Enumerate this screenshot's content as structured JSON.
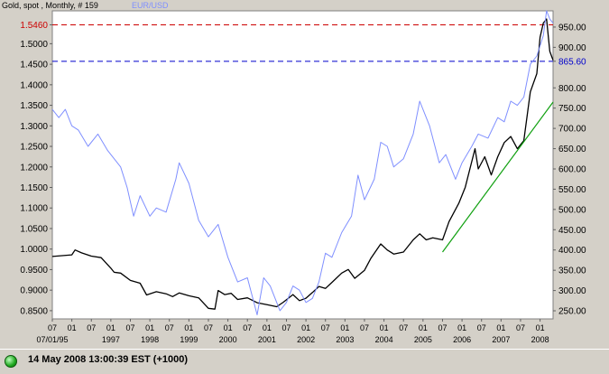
{
  "header": {
    "title": "Gold, spot , Monthly, # 159",
    "series_label": "EUR/USD"
  },
  "colors": {
    "gold": "#000000",
    "eurusd": "#7f8fff",
    "trend": "#10a010",
    "ref_red": "#cc0000",
    "ref_blue": "#0000cc",
    "label_red": "#cc0000",
    "label_blue": "#0000cc"
  },
  "footer": {
    "timestamp": "14 May 2008 13:00:39  EST (+1000)"
  },
  "chart_data": {
    "type": "line",
    "x_start": "1995-07",
    "x_end": "2008-05",
    "left_axis": {
      "ticks": [
        "0.8500",
        "0.9000",
        "0.9500",
        "1.0000",
        "1.0500",
        "1.1000",
        "1.1500",
        "1.2000",
        "1.2500",
        "1.3000",
        "1.3500",
        "1.4000",
        "1.4500",
        "1.5000",
        "1.5460"
      ],
      "ylim": [
        0.83,
        1.58
      ]
    },
    "right_axis": {
      "ticks": [
        "250.00",
        "300.00",
        "350.00",
        "400.00",
        "450.00",
        "500.00",
        "550.00",
        "600.00",
        "650.00",
        "700.00",
        "750.00",
        "800.00",
        "865.60",
        "900.00",
        "950.00"
      ],
      "ylim": [
        230,
        990
      ]
    },
    "x_tick_row1": [
      "07",
      "01",
      "07",
      "01",
      "07",
      "01",
      "07",
      "01",
      "07",
      "01",
      "07",
      "01",
      "07",
      "01",
      "07",
      "01",
      "07",
      "01",
      "07",
      "01",
      "07",
      "01",
      "07",
      "01",
      "07",
      "01"
    ],
    "x_tick_row2": [
      "07/01/95",
      "1997",
      "1998",
      "1999",
      "2000",
      "2001",
      "2002",
      "2003",
      "2004",
      "2005",
      "2006",
      "2007",
      "2008"
    ],
    "reference_lines": [
      {
        "label": "1.5460",
        "value": 1.546,
        "axis": "left"
      },
      {
        "label": "865.60",
        "value": 865.6,
        "axis": "right"
      }
    ],
    "series": [
      {
        "name": "Gold, spot",
        "axis": "right",
        "points": [
          [
            "1995-07",
            384
          ],
          [
            "1995-10",
            386
          ],
          [
            "1996-01",
            388
          ],
          [
            "1996-02",
            400
          ],
          [
            "1996-04",
            393
          ],
          [
            "1996-07",
            385
          ],
          [
            "1996-10",
            381
          ],
          [
            "1997-01",
            355
          ],
          [
            "1997-02",
            345
          ],
          [
            "1997-04",
            343
          ],
          [
            "1997-07",
            325
          ],
          [
            "1997-10",
            318
          ],
          [
            "1997-12",
            289
          ],
          [
            "1998-03",
            297
          ],
          [
            "1998-06",
            292
          ],
          [
            "1998-08",
            285
          ],
          [
            "1998-10",
            294
          ],
          [
            "1999-01",
            287
          ],
          [
            "1999-04",
            282
          ],
          [
            "1999-07",
            256
          ],
          [
            "1999-09",
            254
          ],
          [
            "1999-10",
            300
          ],
          [
            "1999-12",
            290
          ],
          [
            "2000-02",
            293
          ],
          [
            "2000-04",
            278
          ],
          [
            "2000-07",
            282
          ],
          [
            "2000-10",
            270
          ],
          [
            "2001-01",
            265
          ],
          [
            "2001-04",
            260
          ],
          [
            "2001-06",
            271
          ],
          [
            "2001-09",
            290
          ],
          [
            "2001-11",
            275
          ],
          [
            "2002-01",
            281
          ],
          [
            "2002-03",
            295
          ],
          [
            "2002-05",
            310
          ],
          [
            "2002-07",
            305
          ],
          [
            "2002-09",
            320
          ],
          [
            "2002-12",
            343
          ],
          [
            "2003-02",
            352
          ],
          [
            "2003-04",
            330
          ],
          [
            "2003-07",
            350
          ],
          [
            "2003-09",
            380
          ],
          [
            "2003-12",
            415
          ],
          [
            "2004-02",
            400
          ],
          [
            "2004-04",
            390
          ],
          [
            "2004-07",
            395
          ],
          [
            "2004-10",
            425
          ],
          [
            "2004-12",
            440
          ],
          [
            "2005-02",
            425
          ],
          [
            "2005-04",
            430
          ],
          [
            "2005-07",
            425
          ],
          [
            "2005-09",
            470
          ],
          [
            "2005-12",
            515
          ],
          [
            "2006-02",
            555
          ],
          [
            "2006-05",
            650
          ],
          [
            "2006-06",
            600
          ],
          [
            "2006-08",
            630
          ],
          [
            "2006-10",
            585
          ],
          [
            "2006-12",
            630
          ],
          [
            "2007-02",
            665
          ],
          [
            "2007-04",
            680
          ],
          [
            "2007-06",
            650
          ],
          [
            "2007-08",
            670
          ],
          [
            "2007-10",
            790
          ],
          [
            "2007-12",
            835
          ],
          [
            "2008-01",
            925
          ],
          [
            "2008-02",
            960
          ],
          [
            "2008-03",
            970
          ],
          [
            "2008-04",
            890
          ],
          [
            "2008-05",
            868
          ]
        ]
      },
      {
        "name": "EUR/USD",
        "axis": "left",
        "points": [
          [
            "1995-07",
            1.34
          ],
          [
            "1995-09",
            1.32
          ],
          [
            "1995-11",
            1.34
          ],
          [
            "1996-01",
            1.3
          ],
          [
            "1996-03",
            1.29
          ],
          [
            "1996-06",
            1.25
          ],
          [
            "1996-09",
            1.28
          ],
          [
            "1996-12",
            1.24
          ],
          [
            "1997-02",
            1.22
          ],
          [
            "1997-04",
            1.2
          ],
          [
            "1997-06",
            1.15
          ],
          [
            "1997-08",
            1.08
          ],
          [
            "1997-10",
            1.13
          ],
          [
            "1998-01",
            1.08
          ],
          [
            "1998-03",
            1.1
          ],
          [
            "1998-06",
            1.09
          ],
          [
            "1998-09",
            1.17
          ],
          [
            "1998-10",
            1.21
          ],
          [
            "1999-01",
            1.16
          ],
          [
            "1999-04",
            1.07
          ],
          [
            "1999-07",
            1.03
          ],
          [
            "1999-10",
            1.06
          ],
          [
            "2000-01",
            0.98
          ],
          [
            "2000-04",
            0.92
          ],
          [
            "2000-07",
            0.93
          ],
          [
            "2000-09",
            0.87
          ],
          [
            "2000-10",
            0.84
          ],
          [
            "2000-12",
            0.93
          ],
          [
            "2001-02",
            0.91
          ],
          [
            "2001-05",
            0.85
          ],
          [
            "2001-07",
            0.87
          ],
          [
            "2001-09",
            0.91
          ],
          [
            "2001-11",
            0.9
          ],
          [
            "2002-01",
            0.87
          ],
          [
            "2002-03",
            0.88
          ],
          [
            "2002-05",
            0.92
          ],
          [
            "2002-07",
            0.99
          ],
          [
            "2002-09",
            0.98
          ],
          [
            "2002-12",
            1.04
          ],
          [
            "2003-03",
            1.08
          ],
          [
            "2003-05",
            1.18
          ],
          [
            "2003-07",
            1.12
          ],
          [
            "2003-10",
            1.17
          ],
          [
            "2003-12",
            1.26
          ],
          [
            "2004-02",
            1.25
          ],
          [
            "2004-04",
            1.2
          ],
          [
            "2004-07",
            1.22
          ],
          [
            "2004-10",
            1.28
          ],
          [
            "2004-12",
            1.36
          ],
          [
            "2005-03",
            1.3
          ],
          [
            "2005-06",
            1.21
          ],
          [
            "2005-08",
            1.23
          ],
          [
            "2005-11",
            1.17
          ],
          [
            "2006-01",
            1.21
          ],
          [
            "2006-04",
            1.25
          ],
          [
            "2006-06",
            1.28
          ],
          [
            "2006-09",
            1.27
          ],
          [
            "2006-12",
            1.32
          ],
          [
            "2007-02",
            1.31
          ],
          [
            "2007-04",
            1.36
          ],
          [
            "2007-06",
            1.35
          ],
          [
            "2007-08",
            1.37
          ],
          [
            "2007-10",
            1.45
          ],
          [
            "2007-12",
            1.47
          ],
          [
            "2008-02",
            1.52
          ],
          [
            "2008-03",
            1.58
          ],
          [
            "2008-04",
            1.56
          ],
          [
            "2008-05",
            1.55
          ]
        ]
      },
      {
        "name": "trend",
        "axis": "right",
        "points": [
          [
            "2005-07",
            395
          ],
          [
            "2008-05",
            765
          ]
        ]
      }
    ]
  }
}
